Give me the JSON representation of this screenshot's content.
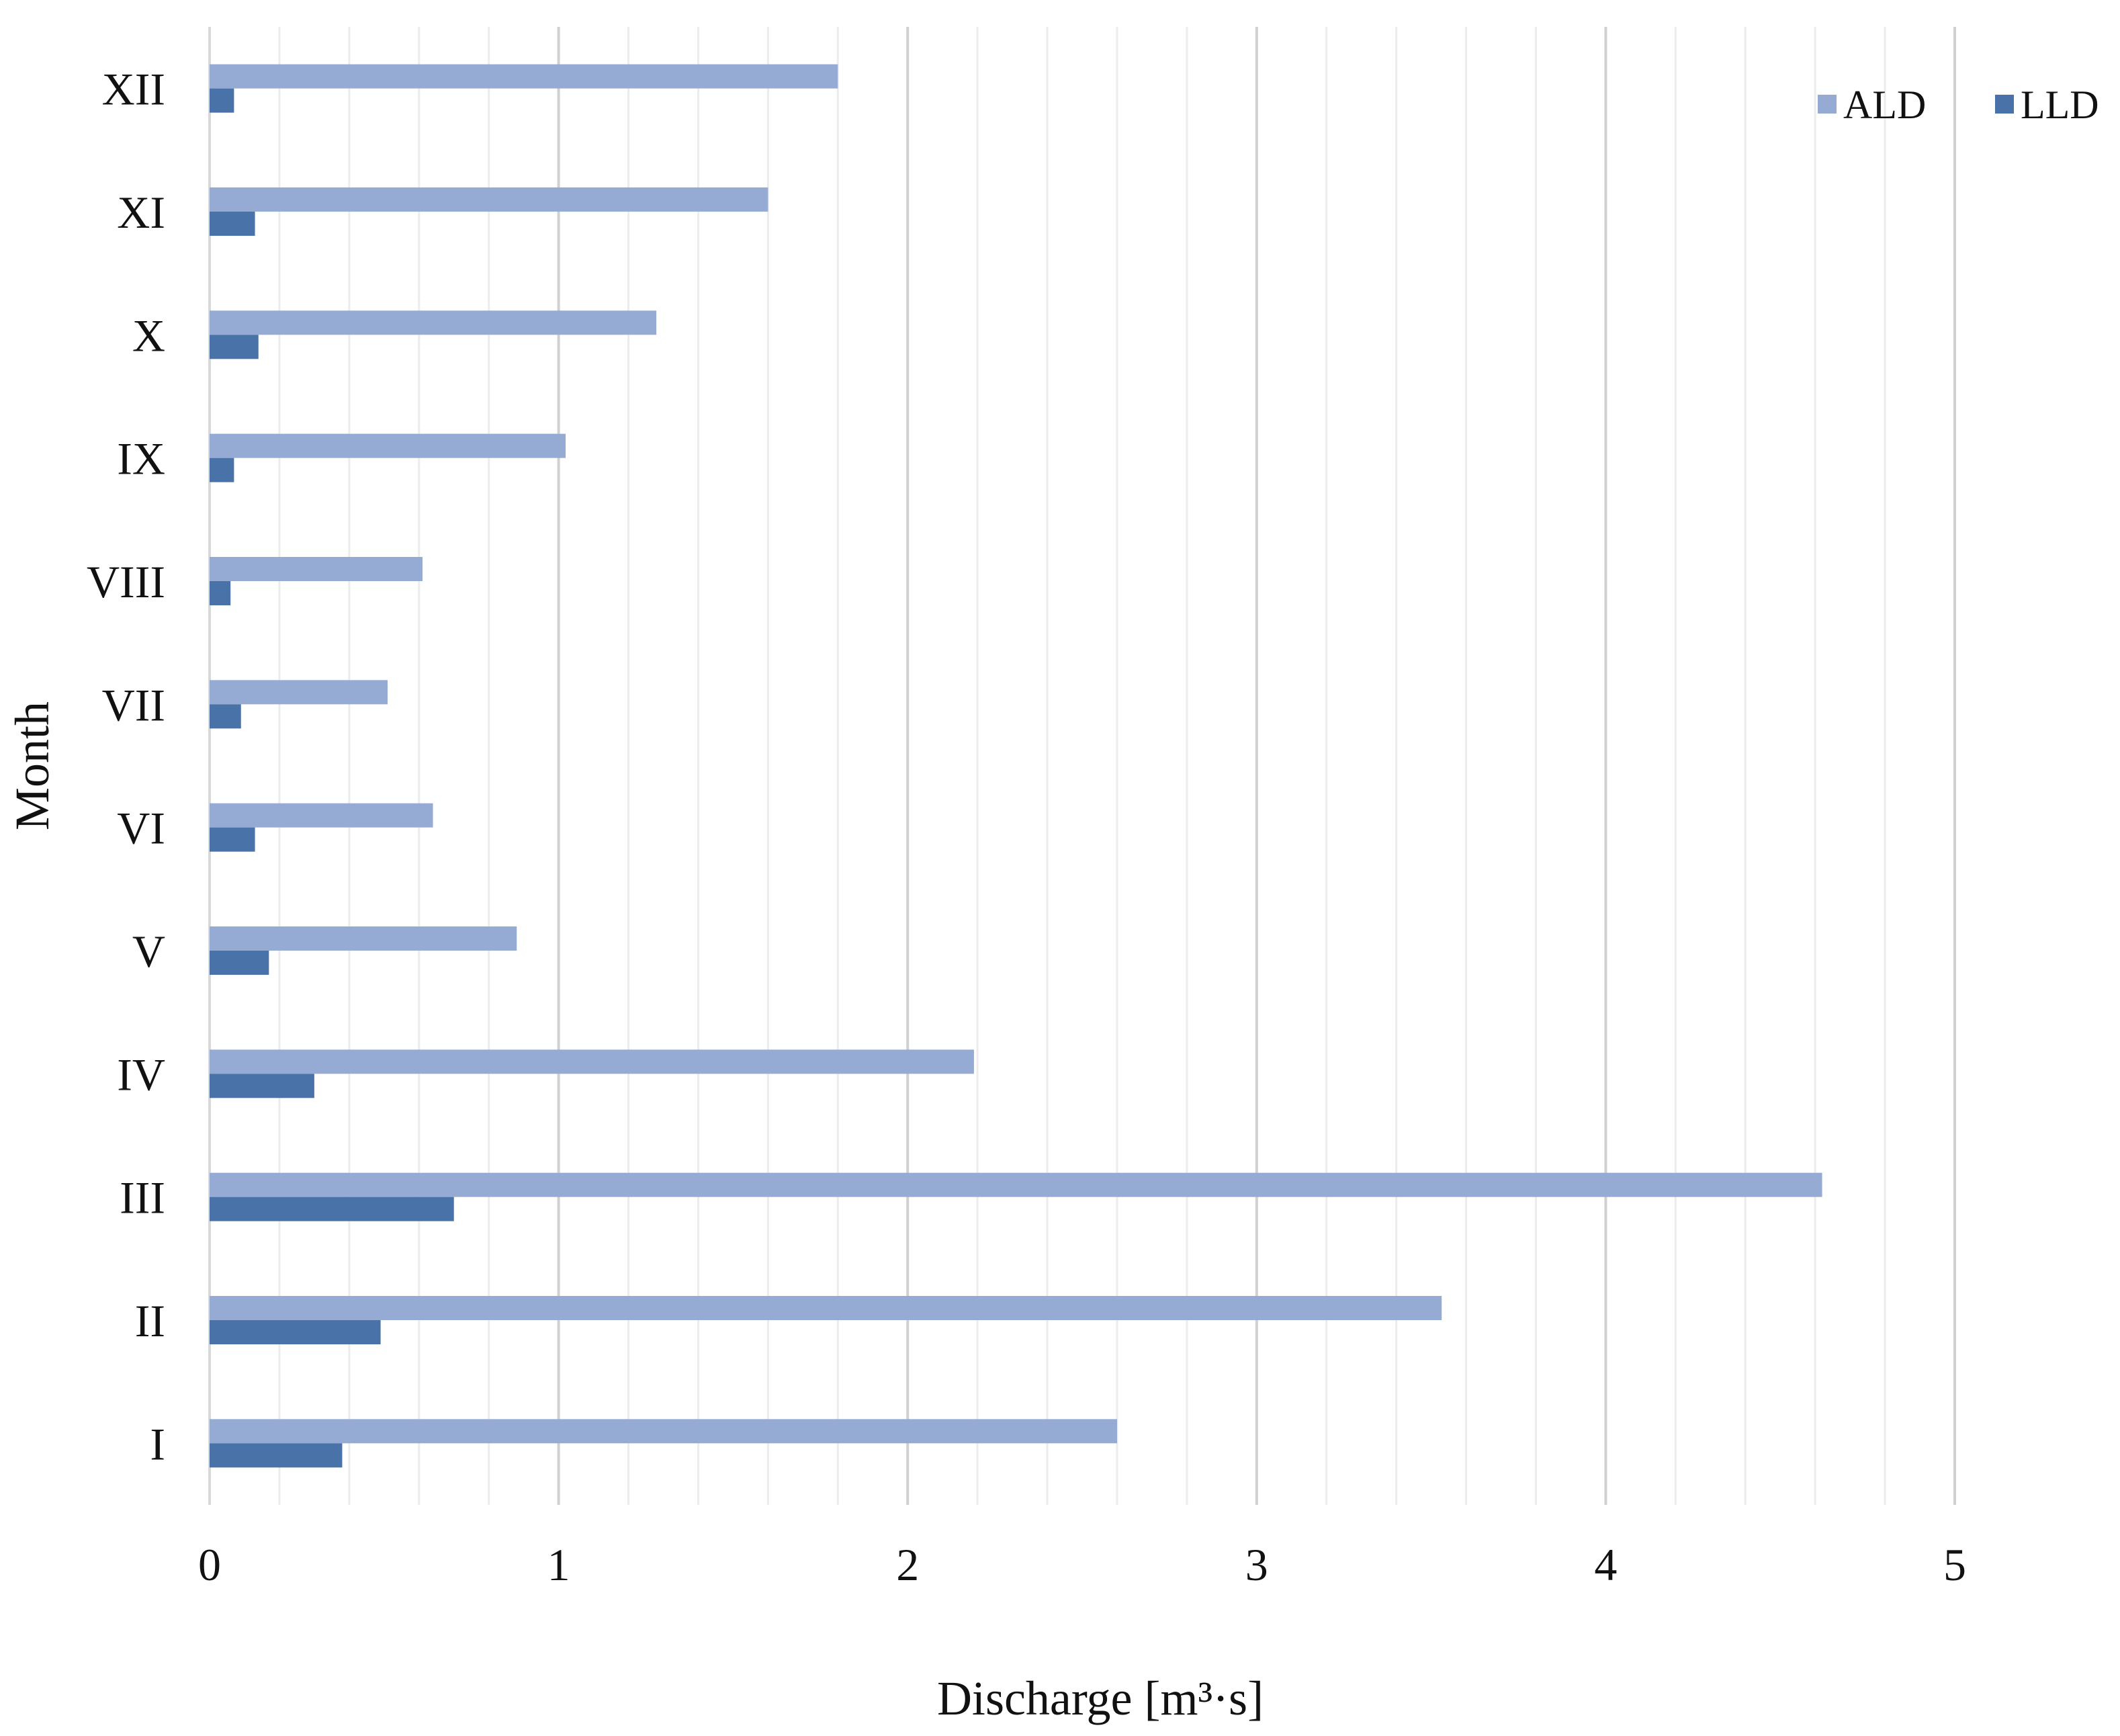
{
  "chart_data": {
    "type": "bar",
    "orientation": "horizontal",
    "categories": [
      "XII",
      "XI",
      "X",
      "IX",
      "VIII",
      "VII",
      "VI",
      "V",
      "IV",
      "III",
      "II",
      "I"
    ],
    "series": [
      {
        "name": "ALD",
        "color": "#95abd3",
        "values": [
          1.8,
          1.6,
          1.28,
          1.02,
          0.61,
          0.51,
          0.64,
          0.88,
          2.19,
          4.62,
          3.53,
          2.6
        ]
      },
      {
        "name": "LLD",
        "color": "#4872a8",
        "values": [
          0.07,
          0.13,
          0.14,
          0.07,
          0.06,
          0.09,
          0.13,
          0.17,
          0.3,
          0.7,
          0.49,
          0.38
        ]
      }
    ],
    "xlabel": "Discharge [m³·s]",
    "ylabel": "Month",
    "xlim": [
      0,
      5
    ],
    "xticks": [
      "0",
      "1",
      "2",
      "3",
      "4",
      "5"
    ],
    "grid": "vertical major and minor",
    "legend_position": "top-right"
  }
}
